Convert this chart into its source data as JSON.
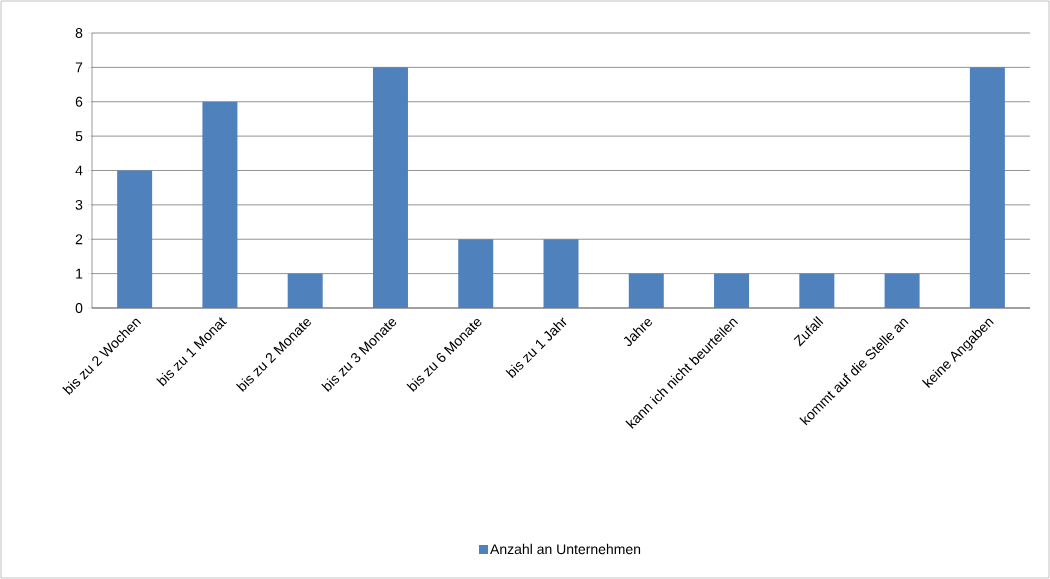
{
  "chart_data": {
    "type": "bar",
    "categories": [
      "bis zu 2 Wochen",
      "bis zu 1 Monat",
      "bis zu 2 Monate",
      "bis zu 3 Monate",
      "bis zu 6 Monate",
      "bis zu 1 Jahr",
      "Jahre",
      "kann ich nicht beurteilen",
      "Zufall",
      "kommt auf die Stelle an",
      "keine Angaben"
    ],
    "series": [
      {
        "name": "Anzahl an Unternehmen",
        "color": "#4f81bd",
        "values": [
          4,
          6,
          1,
          7,
          2,
          2,
          1,
          1,
          1,
          1,
          7
        ]
      }
    ],
    "ylim": [
      0,
      8
    ],
    "yticks": [
      0,
      1,
      2,
      3,
      4,
      5,
      6,
      7,
      8
    ],
    "grid": "y",
    "legend": "bottom"
  }
}
